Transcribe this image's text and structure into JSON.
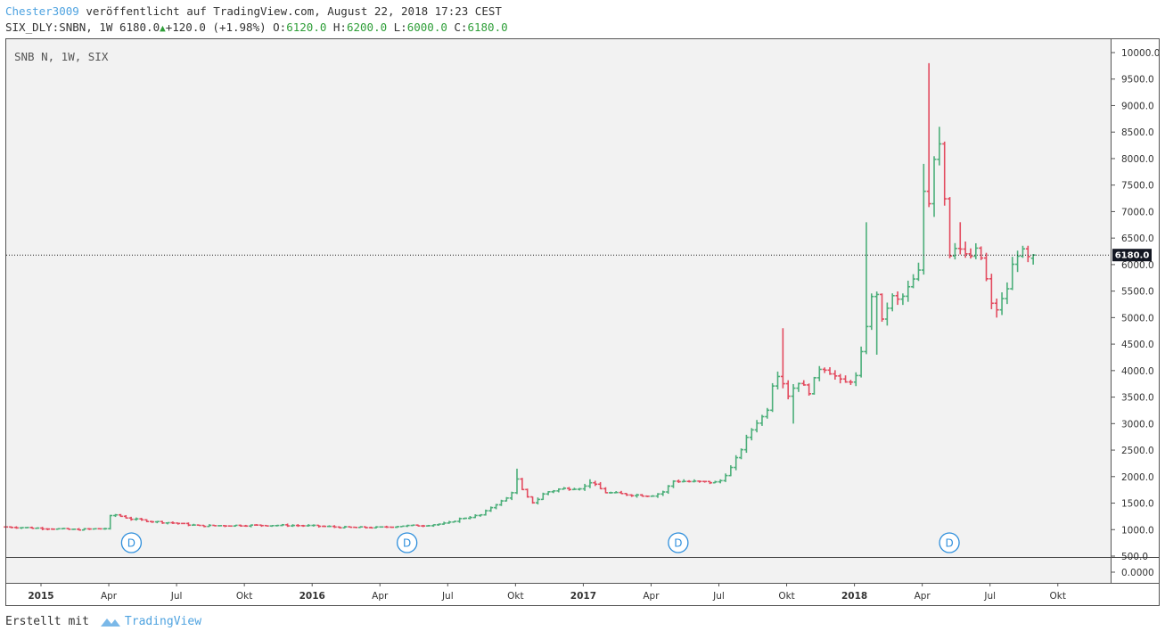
{
  "header": {
    "author": "Chester3009",
    "published_text": " veröffentlicht auf TradingView.com, August 22, 2018 17:23 CEST",
    "symbol": "SIX_DLY:SNBN, 1W",
    "last": "6180.0",
    "change": "+120.0 (+1.98%)",
    "o_label": "O:",
    "o_value": "6120.0",
    "h_label": "H:",
    "h_value": "6200.0",
    "l_label": "L:",
    "l_value": "6000.0",
    "c_label": "C:",
    "c_value": "6180.0"
  },
  "chart_label": "SNB N, 1W, SIX",
  "price_marker": "6180.0",
  "dividend_marker": "D",
  "footer": {
    "created_with": "Erstellt mit",
    "brand": "TradingView"
  },
  "colors": {
    "up": "#4caf7a",
    "down": "#e34b5f",
    "panel_bg": "#f2f2f2",
    "author": "#4fa3e0",
    "green_text": "#2e9e38"
  },
  "chart_data": {
    "type": "ohlc",
    "title": "SNB N, 1W, SIX",
    "interval": "1W",
    "ylim": [
      500,
      10000
    ],
    "y_ticks": [
      "10000.0",
      "9500.0",
      "9000.0",
      "8500.0",
      "8000.0",
      "7500.0",
      "7000.0",
      "6500.0",
      "6000.0",
      "5500.0",
      "5000.0",
      "4500.0",
      "4000.0",
      "3500.0",
      "3000.0",
      "2500.0",
      "2000.0",
      "1500.0",
      "1000.0",
      "500.0"
    ],
    "lower_pane_tick": "0.0000",
    "x_ticks": [
      {
        "label": "2015",
        "bold": true,
        "t": 0.0
      },
      {
        "label": "Apr",
        "bold": false,
        "t": 3.0
      },
      {
        "label": "Jul",
        "bold": false,
        "t": 6.0
      },
      {
        "label": "Okt",
        "bold": false,
        "t": 9.0
      },
      {
        "label": "2016",
        "bold": true,
        "t": 12.0
      },
      {
        "label": "Apr",
        "bold": false,
        "t": 15.0
      },
      {
        "label": "Jul",
        "bold": false,
        "t": 18.0
      },
      {
        "label": "Okt",
        "bold": false,
        "t": 21.0
      },
      {
        "label": "2017",
        "bold": true,
        "t": 24.0
      },
      {
        "label": "Apr",
        "bold": false,
        "t": 27.0
      },
      {
        "label": "Jul",
        "bold": false,
        "t": 30.0
      },
      {
        "label": "Okt",
        "bold": false,
        "t": 33.0
      },
      {
        "label": "2018",
        "bold": true,
        "t": 36.0
      },
      {
        "label": "Apr",
        "bold": false,
        "t": 39.0
      },
      {
        "label": "Jul",
        "bold": false,
        "t": 42.0
      },
      {
        "label": "Okt",
        "bold": false,
        "t": 45.0
      }
    ],
    "dividends_t": [
      4.0,
      16.2,
      28.2,
      40.2
    ],
    "last_price": 6180.0,
    "anchors": [
      [
        -1.5,
        1050
      ],
      [
        1.5,
        1000
      ],
      [
        2.9,
        1020
      ],
      [
        3.1,
        1300
      ],
      [
        4.0,
        1200
      ],
      [
        5.0,
        1150
      ],
      [
        6.0,
        1120
      ],
      [
        7.0,
        1070
      ],
      [
        9.0,
        1080
      ],
      [
        11.0,
        1080
      ],
      [
        12.0,
        1070
      ],
      [
        13.5,
        1040
      ],
      [
        15.0,
        1040
      ],
      [
        16.0,
        1070
      ],
      [
        17.0,
        1080
      ],
      [
        18.0,
        1120
      ],
      [
        18.5,
        1200
      ],
      [
        19.5,
        1280
      ],
      [
        20.0,
        1450
      ],
      [
        20.5,
        1560
      ],
      [
        20.8,
        1650
      ],
      [
        21.0,
        2000
      ],
      [
        21.4,
        1650
      ],
      [
        21.8,
        1500
      ],
      [
        22.3,
        1700
      ],
      [
        23.0,
        1770
      ],
      [
        24.0,
        1790
      ],
      [
        24.3,
        1900
      ],
      [
        25.0,
        1700
      ],
      [
        26.0,
        1660
      ],
      [
        27.0,
        1640
      ],
      [
        27.5,
        1700
      ],
      [
        28.0,
        1920
      ],
      [
        29.0,
        1900
      ],
      [
        30.0,
        1890
      ],
      [
        30.6,
        2200
      ],
      [
        31.2,
        2700
      ],
      [
        31.6,
        3000
      ],
      [
        32.1,
        3200
      ],
      [
        32.4,
        3800
      ],
      [
        32.7,
        4000
      ],
      [
        33.0,
        3500
      ],
      [
        33.5,
        3800
      ],
      [
        34.0,
        3600
      ],
      [
        34.5,
        4100
      ],
      [
        35.0,
        3950
      ],
      [
        35.5,
        3750
      ],
      [
        36.0,
        3850
      ],
      [
        36.2,
        3950
      ],
      [
        36.4,
        4700
      ],
      [
        36.7,
        5100
      ],
      [
        36.9,
        6000
      ],
      [
        37.1,
        4800
      ],
      [
        37.3,
        5000
      ],
      [
        37.6,
        5400
      ],
      [
        38.0,
        5300
      ],
      [
        38.3,
        5500
      ],
      [
        38.6,
        5700
      ],
      [
        38.9,
        5900
      ],
      [
        39.1,
        7700
      ],
      [
        39.3,
        7200
      ],
      [
        39.5,
        8000
      ],
      [
        39.8,
        8400
      ],
      [
        40.0,
        7200
      ],
      [
        40.2,
        6200
      ],
      [
        40.5,
        6400
      ],
      [
        41.0,
        6100
      ],
      [
        41.5,
        6300
      ],
      [
        41.8,
        5800
      ],
      [
        42.0,
        5300
      ],
      [
        42.2,
        5100
      ],
      [
        42.5,
        5300
      ],
      [
        42.8,
        5600
      ],
      [
        43.0,
        6000
      ],
      [
        43.3,
        6300
      ],
      [
        43.7,
        6100
      ],
      [
        44.0,
        6180
      ]
    ],
    "spikes": [
      [
        20.95,
        2150
      ],
      [
        24.3,
        1950
      ],
      [
        32.8,
        4800
      ],
      [
        33.2,
        3000
      ],
      [
        36.55,
        6800
      ],
      [
        37.0,
        4300
      ],
      [
        39.1,
        7900
      ],
      [
        39.2,
        9800
      ],
      [
        39.45,
        6900
      ],
      [
        39.8,
        8600
      ],
      [
        40.6,
        6800
      ],
      [
        42.4,
        5000
      ]
    ]
  }
}
